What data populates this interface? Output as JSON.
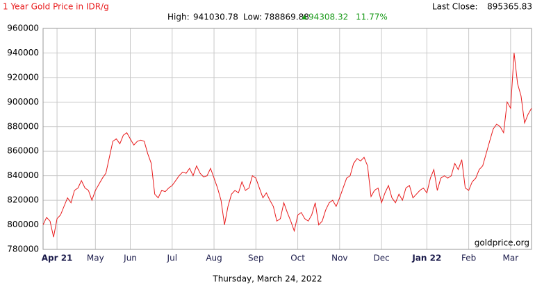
{
  "chart_data": {
    "type": "line",
    "title": "1 Year Gold Price in IDR/g",
    "last_close_label": "Last Close:",
    "last_close": 895365.83,
    "high_label": "High:",
    "high": 941030.78,
    "low_label": "Low:",
    "low": 788869.88,
    "change": 94308.32,
    "change_pct": "11.77%",
    "date": "Thursday, March 24, 2022",
    "watermark": "goldprice.org",
    "color": "#e8191a",
    "grid": true,
    "ylim": [
      780000,
      960000
    ],
    "yticks": [
      780000,
      800000,
      820000,
      840000,
      860000,
      880000,
      900000,
      920000,
      940000,
      960000
    ],
    "categories": [
      null,
      null,
      null,
      null,
      "Apr 21",
      null,
      null,
      null,
      null,
      null,
      null,
      null,
      null,
      null,
      null,
      "May",
      null,
      null,
      null,
      null,
      null,
      null,
      null,
      null,
      null,
      "Jun",
      null,
      null,
      null,
      null,
      null,
      null,
      null,
      null,
      null,
      null,
      null,
      "Jul",
      null,
      null,
      null,
      null,
      null,
      null,
      null,
      null,
      null,
      null,
      null,
      "Aug",
      null,
      null,
      null,
      null,
      null,
      null,
      null,
      null,
      null,
      null,
      null,
      "Sep",
      null,
      null,
      null,
      null,
      null,
      null,
      null,
      null,
      null,
      null,
      null,
      "Oct",
      null,
      null,
      null,
      null,
      null,
      null,
      null,
      null,
      null,
      null,
      null,
      "Nov",
      null,
      null,
      null,
      null,
      null,
      null,
      null,
      null,
      null,
      null,
      null,
      "Dec",
      null,
      null,
      null,
      null,
      null,
      null,
      null,
      null,
      null,
      null,
      null,
      null,
      "Jan 22",
      null,
      null,
      null,
      null,
      null,
      null,
      null,
      null,
      null,
      null,
      null,
      "Feb",
      null,
      null,
      null,
      null,
      null,
      null,
      null,
      null,
      null,
      null,
      null,
      "Mar",
      null,
      null,
      null,
      null,
      null,
      null
    ],
    "values": [
      800000,
      806000,
      803000,
      790000,
      805000,
      808000,
      815000,
      822000,
      818000,
      828000,
      830000,
      836000,
      830000,
      828000,
      820000,
      828000,
      833000,
      838000,
      842000,
      855000,
      868000,
      870000,
      866000,
      873000,
      875000,
      870000,
      865000,
      868000,
      869000,
      868000,
      858000,
      850000,
      825000,
      822000,
      828000,
      827000,
      830000,
      832000,
      836000,
      840000,
      843000,
      842000,
      846000,
      840000,
      848000,
      842000,
      839000,
      840000,
      846000,
      838000,
      830000,
      820000,
      800000,
      815000,
      825000,
      828000,
      826000,
      835000,
      828000,
      830000,
      840000,
      838000,
      830000,
      822000,
      826000,
      820000,
      815000,
      803000,
      805000,
      818000,
      810000,
      803000,
      795000,
      808000,
      810000,
      805000,
      803000,
      808000,
      818000,
      800000,
      803000,
      812000,
      818000,
      820000,
      815000,
      822000,
      830000,
      838000,
      840000,
      850000,
      854000,
      852000,
      855000,
      848000,
      823000,
      828000,
      830000,
      818000,
      826000,
      832000,
      822000,
      818000,
      825000,
      820000,
      830000,
      832000,
      822000,
      825000,
      828000,
      830000,
      826000,
      838000,
      845000,
      828000,
      838000,
      840000,
      838000,
      840000,
      850000,
      845000,
      853000,
      830000,
      828000,
      835000,
      838000,
      845000,
      848000,
      858000,
      868000,
      878000,
      882000,
      880000,
      875000,
      900000,
      895000,
      940000,
      915000,
      905000,
      883000,
      890000,
      895000
    ]
  }
}
